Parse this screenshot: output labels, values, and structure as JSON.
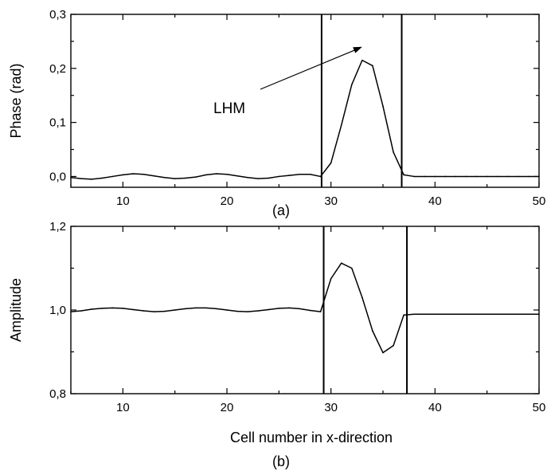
{
  "chart_data": [
    {
      "type": "line",
      "panel_label": "(a)",
      "xlabel": "",
      "ylabel": "Phase (rad)",
      "xlim": [
        5,
        50
      ],
      "ylim": [
        -0.02,
        0.3
      ],
      "x_ticks": [
        10,
        20,
        30,
        40,
        50
      ],
      "y_ticks": [
        0.0,
        0.1,
        0.2,
        0.3
      ],
      "y_tick_labels": [
        "0,0",
        "0,1",
        "0,2",
        "0,3"
      ],
      "grid": false,
      "annotations": [
        {
          "text": "LHM",
          "arrow_to": [
            33,
            0.24
          ]
        }
      ],
      "vertical_lines": [
        29.1,
        36.8
      ],
      "series": [
        {
          "x": [
            5,
            6,
            7,
            8,
            9,
            10,
            11,
            12,
            13,
            14,
            15,
            16,
            17,
            18,
            19,
            20,
            21,
            22,
            23,
            24,
            25,
            26,
            27,
            28,
            29,
            30,
            31,
            32,
            33,
            34,
            35,
            36,
            37,
            38,
            39,
            40,
            41,
            42,
            43,
            44,
            45,
            46,
            47,
            48,
            49,
            50
          ],
          "y": [
            -0.002,
            -0.004,
            -0.005,
            -0.003,
            0.0,
            0.003,
            0.005,
            0.004,
            0.001,
            -0.002,
            -0.004,
            -0.003,
            -0.001,
            0.003,
            0.005,
            0.004,
            0.001,
            -0.002,
            -0.004,
            -0.003,
            0.0,
            0.002,
            0.004,
            0.004,
            0.0,
            0.025,
            0.095,
            0.17,
            0.215,
            0.205,
            0.13,
            0.045,
            0.003,
            0.0,
            0.0,
            0.0,
            0.0,
            0.0,
            0.0,
            0.0,
            0.0,
            0.0,
            0.0,
            0.0,
            0.0,
            0.0
          ]
        }
      ]
    },
    {
      "type": "line",
      "panel_label": "(b)",
      "xlabel": "Cell number in x-direction",
      "ylabel": "Amplitude",
      "xlim": [
        5,
        50
      ],
      "ylim": [
        0.8,
        1.2
      ],
      "x_ticks": [
        10,
        20,
        30,
        40,
        50
      ],
      "y_ticks": [
        0.8,
        1.0,
        1.2
      ],
      "y_tick_labels": [
        "0,8",
        "1,0",
        "1,2"
      ],
      "grid": false,
      "vertical_lines": [
        29.3,
        37.3
      ],
      "series": [
        {
          "x": [
            5,
            6,
            7,
            8,
            9,
            10,
            11,
            12,
            13,
            14,
            15,
            16,
            17,
            18,
            19,
            20,
            21,
            22,
            23,
            24,
            25,
            26,
            27,
            28,
            29,
            30,
            31,
            32,
            33,
            34,
            35,
            36,
            37,
            38,
            39,
            40,
            41,
            42,
            43,
            44,
            45,
            46,
            47,
            48,
            49,
            50
          ],
          "y": [
            0.996,
            0.998,
            1.002,
            1.004,
            1.005,
            1.004,
            1.001,
            0.998,
            0.996,
            0.997,
            1.0,
            1.003,
            1.005,
            1.005,
            1.003,
            1.0,
            0.997,
            0.996,
            0.998,
            1.001,
            1.004,
            1.005,
            1.003,
            0.999,
            0.996,
            1.075,
            1.112,
            1.1,
            1.03,
            0.95,
            0.898,
            0.915,
            0.988,
            0.99,
            0.99,
            0.99,
            0.99,
            0.99,
            0.99,
            0.99,
            0.99,
            0.99,
            0.99,
            0.99,
            0.99,
            0.99
          ]
        }
      ]
    }
  ]
}
